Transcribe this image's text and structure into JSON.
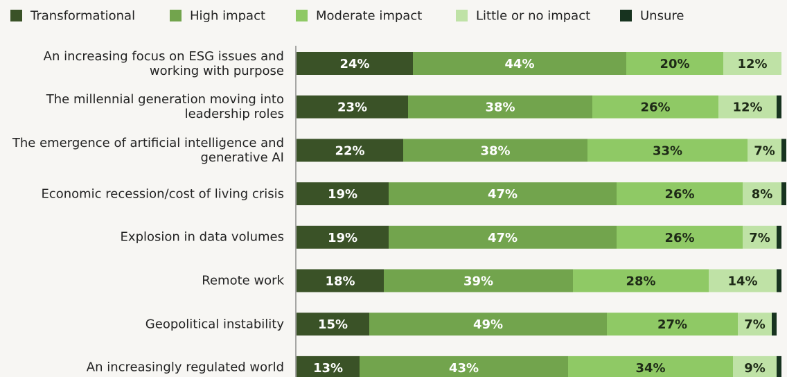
{
  "chart_data": {
    "type": "stacked-bar-horizontal",
    "categories": [
      "An increasing focus on ESG issues and working with purpose",
      "The millennial generation moving into leadership roles",
      "The emergence of artificial intelligence and generative AI",
      "Economic recession/cost of living crisis",
      "Explosion in data volumes",
      "Remote work",
      "Geopolitical instability",
      "An increasingly regulated world"
    ],
    "series": [
      {
        "name": "Transformational",
        "color": "#3a5227",
        "values": [
          24,
          23,
          22,
          19,
          19,
          18,
          15,
          13
        ],
        "value_labels": [
          "24%",
          "23%",
          "22%",
          "19%",
          "19%",
          "18%",
          "15%",
          "13%"
        ]
      },
      {
        "name": "High impact",
        "color": "#72a44d",
        "values": [
          44,
          38,
          38,
          47,
          47,
          39,
          49,
          43
        ],
        "value_labels": [
          "44%",
          "38%",
          "38%",
          "47%",
          "47%",
          "39%",
          "49%",
          "43%"
        ]
      },
      {
        "name": "Moderate impact",
        "color": "#8fc965",
        "values": [
          20,
          26,
          33,
          26,
          26,
          28,
          27,
          34
        ],
        "value_labels": [
          "20%",
          "26%",
          "33%",
          "26%",
          "26%",
          "28%",
          "27%",
          "34%"
        ]
      },
      {
        "name": "Little or no impact",
        "color": "#bfe2a6",
        "values": [
          12,
          12,
          7,
          8,
          7,
          14,
          7,
          9
        ],
        "value_labels": [
          "12%",
          "12%",
          "7%",
          "8%",
          "7%",
          "14%",
          "7%",
          "9%"
        ]
      },
      {
        "name": "Unsure",
        "color": "#17331f",
        "values": [
          0,
          1,
          1,
          1,
          1,
          1,
          1,
          1
        ]
      }
    ]
  }
}
